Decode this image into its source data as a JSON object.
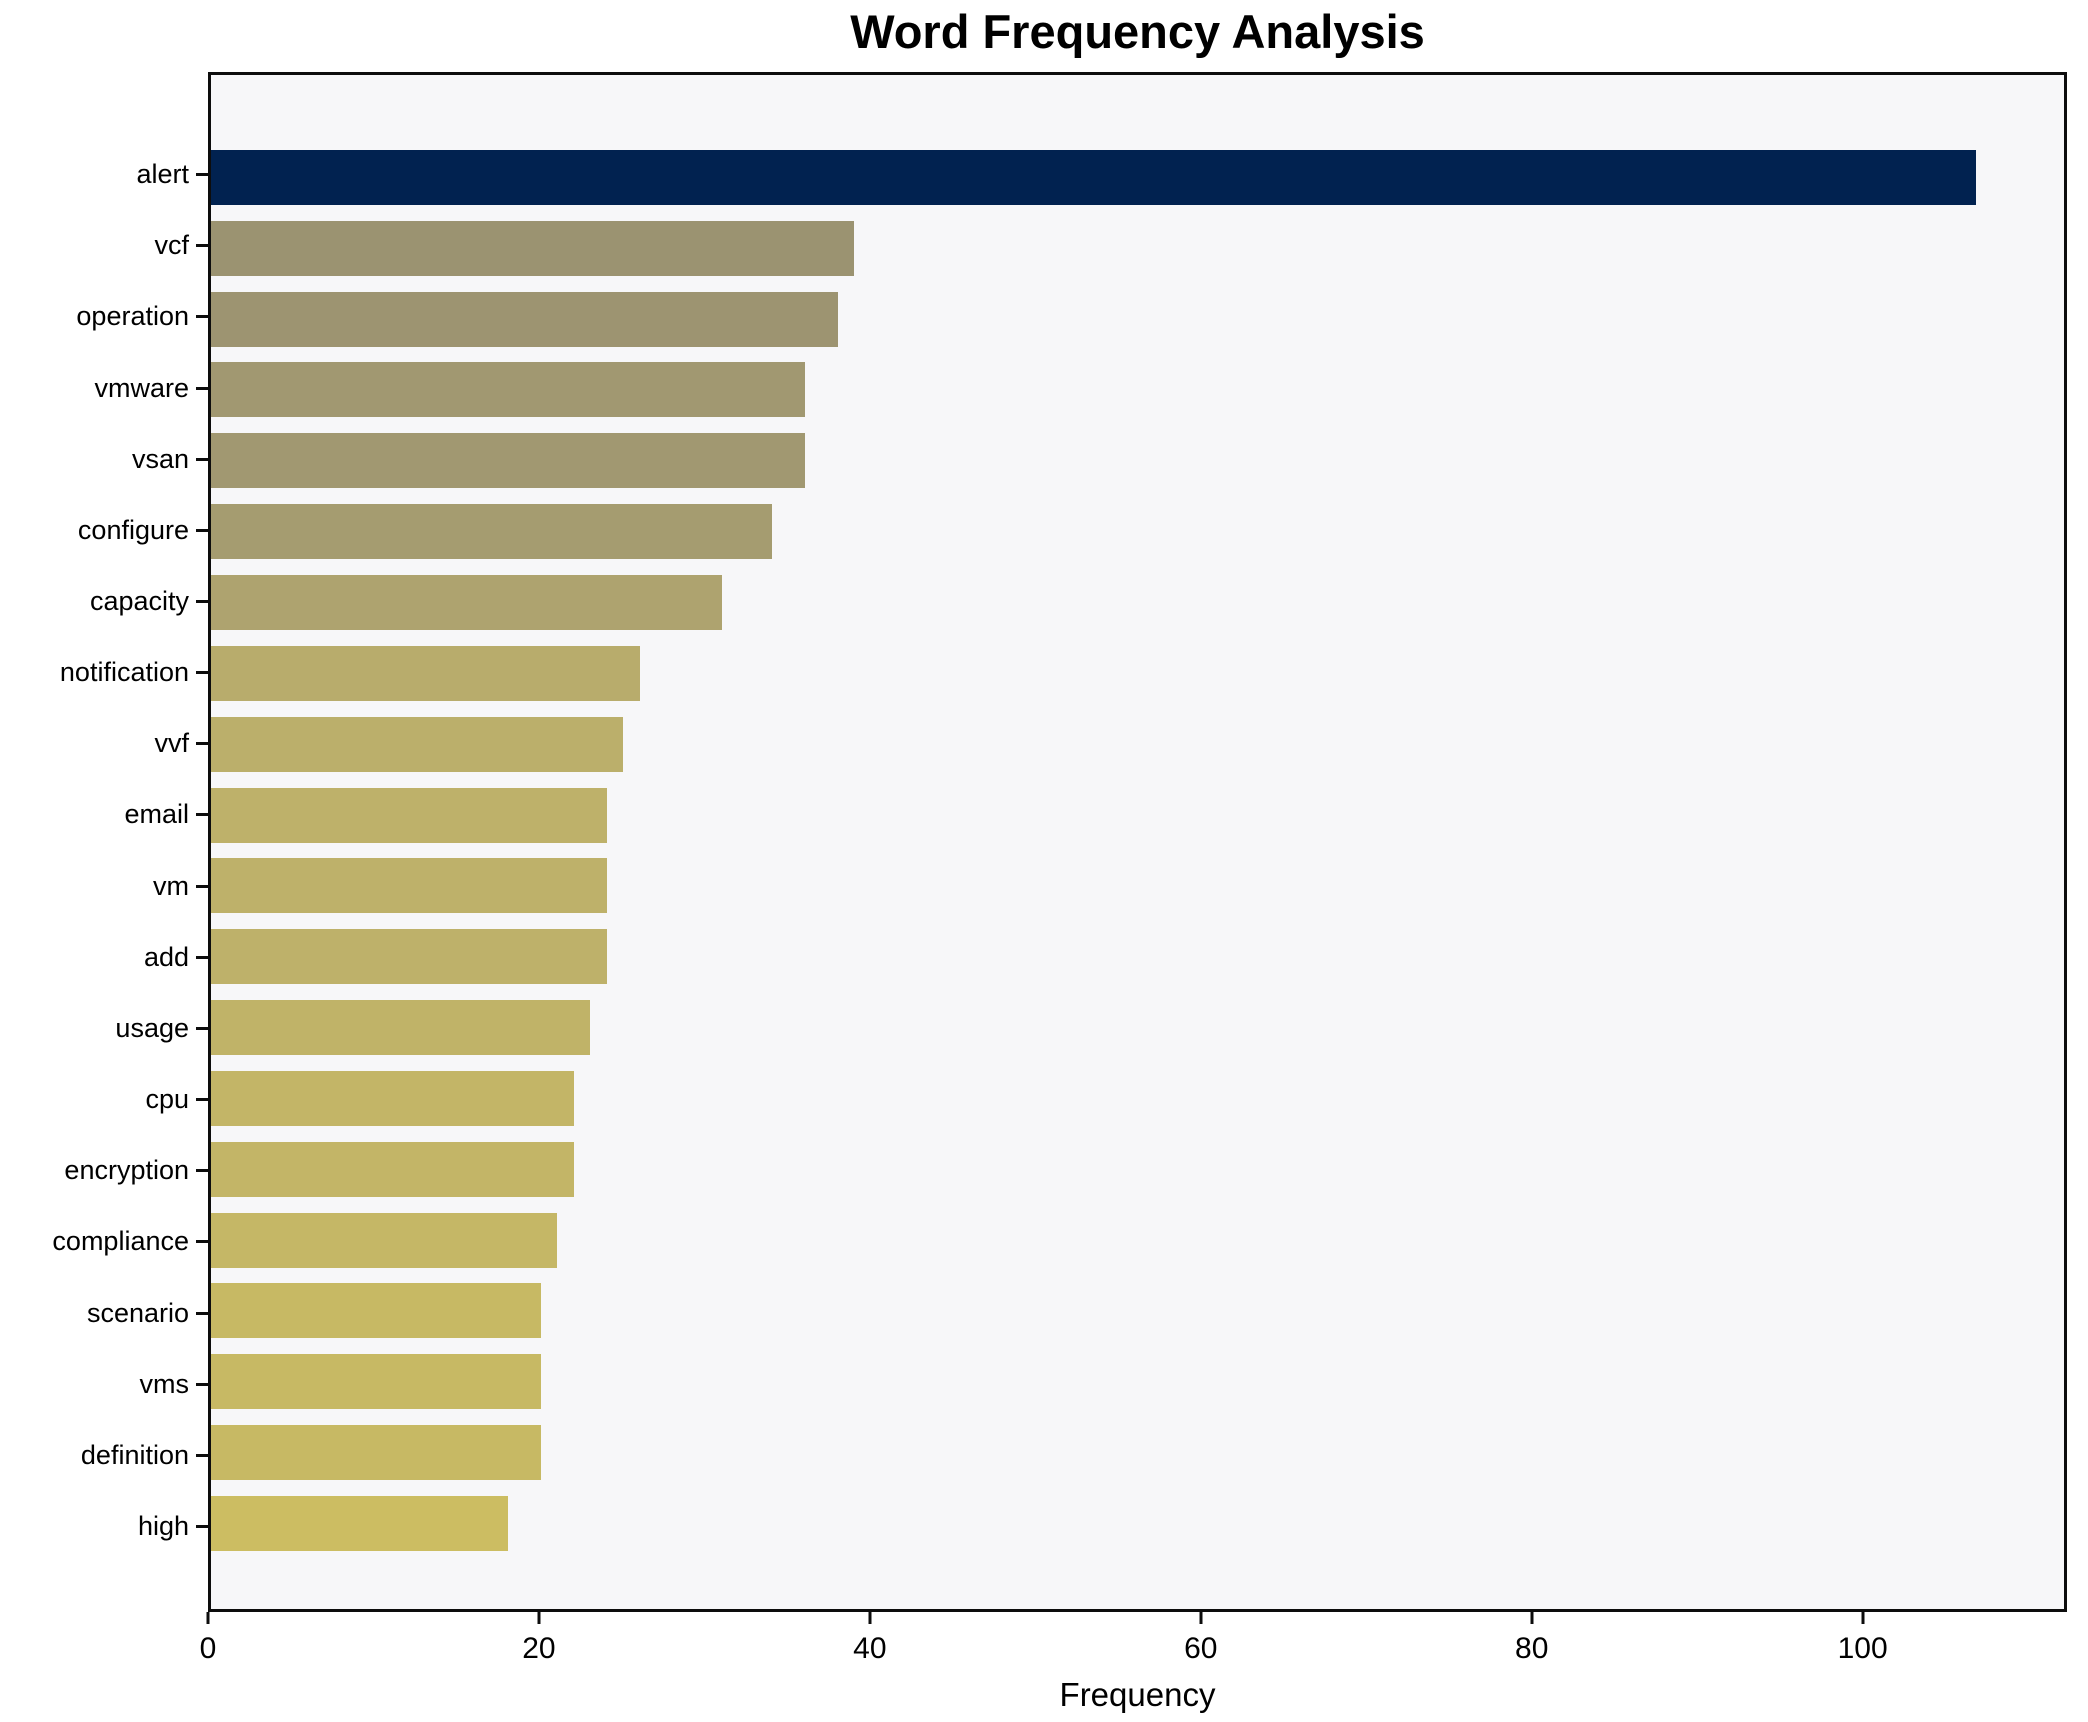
{
  "chart_data": {
    "type": "bar",
    "orientation": "horizontal",
    "title": "Word Frequency Analysis",
    "xlabel": "Frequency",
    "ylabel": "",
    "categories": [
      "alert",
      "vcf",
      "operation",
      "vmware",
      "vsan",
      "configure",
      "capacity",
      "notification",
      "vvf",
      "email",
      "vm",
      "add",
      "usage",
      "cpu",
      "encryption",
      "compliance",
      "scenario",
      "vms",
      "definition",
      "high"
    ],
    "values": [
      107,
      39,
      38,
      36,
      36,
      34,
      31,
      26,
      25,
      24,
      24,
      24,
      23,
      22,
      22,
      21,
      20,
      20,
      20,
      18
    ],
    "bar_colors": [
      "#012250",
      "#9b9371",
      "#9d9471",
      "#a19871",
      "#a19871",
      "#a59c70",
      "#aea36f",
      "#b8ac6c",
      "#bbaf6b",
      "#beb16a",
      "#beb16a",
      "#beb16a",
      "#c0b368",
      "#c3b567",
      "#c3b567",
      "#c5b766",
      "#c7b964",
      "#c7b964",
      "#c7b964",
      "#ccbd62"
    ],
    "xlim": [
      0,
      112.35
    ],
    "xticks": [
      0,
      20,
      40,
      60,
      80,
      100
    ],
    "grid": false,
    "legend_position": "none",
    "plot_background": "#f7f7f9",
    "figure_background": "#ffffff",
    "spine_color": "#0d0d0d",
    "text_color": "#000000"
  }
}
